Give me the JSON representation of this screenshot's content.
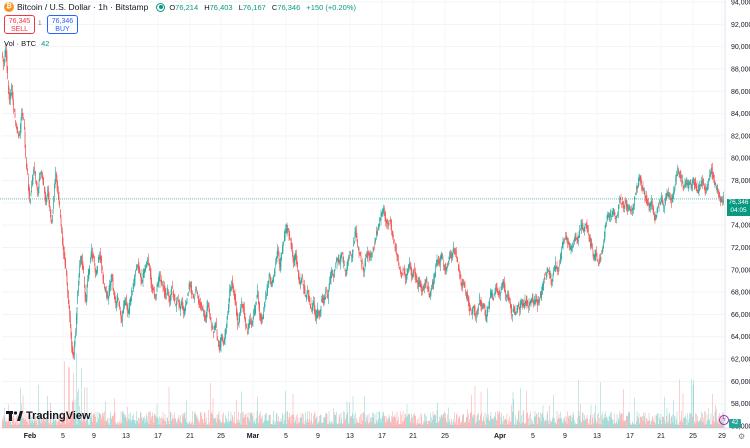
{
  "header": {
    "title": "Bitcoin / U.S. Dollar · 1h · Bitstamp",
    "open_label": "O",
    "open": "76,214",
    "high_label": "H",
    "high": "76,403",
    "low_label": "L",
    "low": "76,167",
    "close_label": "C",
    "close": "76,346",
    "change": "+150 (+0.20%)"
  },
  "trade": {
    "sell_price": "76,345",
    "sell_label": "SELL",
    "spread": "1",
    "buy_price": "76,346",
    "buy_label": "BUY"
  },
  "volume": {
    "label": "Vol · BTC",
    "value": "42"
  },
  "brand": "TradingView",
  "last_price": {
    "price": "76,346",
    "countdown": "04:05",
    "volume_badge": "42"
  },
  "colors": {
    "up": "#26a69a",
    "down": "#ef5350",
    "price_line": "#089981",
    "accent": "#2962ff"
  },
  "icons": {
    "settings": "gear-icon",
    "alert": "lightning-icon"
  },
  "chart_data": {
    "type": "candlestick",
    "y_ticks": [
      "94,000",
      "92,000",
      "90,000",
      "88,000",
      "86,000",
      "84,000",
      "82,000",
      "80,000",
      "78,000",
      "76,000",
      "74,000",
      "72,000",
      "70,000",
      "68,000",
      "66,000",
      "64,000",
      "62,000",
      "60,000",
      "58,000",
      "56,000"
    ],
    "ylim": [
      56000,
      94000
    ],
    "x_ticks": [
      "Feb",
      "5",
      "9",
      "13",
      "17",
      "21",
      "25",
      "Mar",
      "5",
      "9",
      "13",
      "17",
      "21",
      "25",
      "Apr",
      "5",
      "9",
      "13",
      "17",
      "21",
      "25",
      "29"
    ],
    "price_path": [
      [
        0,
        89500
      ],
      [
        2,
        88200
      ],
      [
        4,
        90000
      ],
      [
        6,
        87000
      ],
      [
        8,
        85000
      ],
      [
        10,
        86500
      ],
      [
        12,
        84500
      ],
      [
        14,
        83000
      ],
      [
        16,
        82500
      ],
      [
        18,
        82000
      ],
      [
        20,
        84000
      ],
      [
        22,
        83500
      ],
      [
        24,
        80000
      ],
      [
        26,
        78500
      ],
      [
        28,
        76000
      ],
      [
        30,
        77500
      ],
      [
        32,
        79000
      ],
      [
        34,
        78200
      ],
      [
        36,
        77000
      ],
      [
        38,
        78500
      ],
      [
        40,
        78800
      ],
      [
        42,
        77500
      ],
      [
        44,
        76000
      ],
      [
        46,
        77200
      ],
      [
        48,
        75500
      ],
      [
        50,
        74000
      ],
      [
        52,
        76500
      ],
      [
        54,
        78800
      ],
      [
        56,
        77000
      ],
      [
        58,
        75500
      ],
      [
        60,
        73500
      ],
      [
        62,
        71500
      ],
      [
        64,
        70000
      ],
      [
        66,
        68000
      ],
      [
        68,
        66000
      ],
      [
        70,
        63000
      ],
      [
        72,
        62500
      ],
      [
        74,
        64500
      ],
      [
        76,
        68000
      ],
      [
        78,
        70500
      ],
      [
        80,
        71000
      ],
      [
        82,
        69500
      ],
      [
        84,
        67000
      ],
      [
        86,
        69000
      ],
      [
        88,
        70500
      ],
      [
        90,
        71800
      ],
      [
        92,
        71000
      ],
      [
        94,
        69500
      ],
      [
        96,
        70500
      ],
      [
        98,
        71500
      ],
      [
        100,
        70200
      ],
      [
        102,
        69000
      ],
      [
        104,
        68000
      ],
      [
        106,
        67500
      ],
      [
        108,
        68500
      ],
      [
        110,
        69500
      ],
      [
        112,
        68000
      ],
      [
        114,
        66800
      ],
      [
        116,
        67500
      ],
      [
        118,
        66500
      ],
      [
        120,
        65500
      ],
      [
        122,
        66800
      ],
      [
        124,
        67500
      ],
      [
        126,
        66000
      ],
      [
        128,
        67000
      ],
      [
        130,
        68000
      ],
      [
        132,
        68800
      ],
      [
        134,
        69800
      ],
      [
        136,
        70500
      ],
      [
        138,
        69800
      ],
      [
        140,
        68800
      ],
      [
        142,
        69800
      ],
      [
        144,
        70200
      ],
      [
        146,
        71000
      ],
      [
        148,
        70000
      ],
      [
        150,
        68500
      ],
      [
        152,
        68000
      ],
      [
        154,
        67500
      ],
      [
        156,
        68800
      ],
      [
        158,
        69500
      ],
      [
        160,
        68800
      ],
      [
        162,
        68300
      ],
      [
        164,
        67500
      ],
      [
        166,
        68200
      ],
      [
        168,
        67000
      ],
      [
        170,
        68500
      ],
      [
        172,
        67500
      ],
      [
        174,
        66800
      ],
      [
        176,
        67500
      ],
      [
        178,
        66500
      ],
      [
        180,
        67200
      ],
      [
        182,
        66000
      ],
      [
        184,
        66800
      ],
      [
        186,
        67800
      ],
      [
        188,
        68800
      ],
      [
        190,
        68000
      ],
      [
        192,
        67300
      ],
      [
        194,
        68300
      ],
      [
        196,
        67500
      ],
      [
        198,
        67000
      ],
      [
        200,
        66500
      ],
      [
        202,
        66000
      ],
      [
        204,
        65500
      ],
      [
        206,
        67000
      ],
      [
        208,
        66000
      ],
      [
        210,
        65000
      ],
      [
        212,
        64500
      ],
      [
        214,
        65200
      ],
      [
        216,
        63500
      ],
      [
        218,
        63000
      ],
      [
        220,
        64000
      ],
      [
        222,
        63300
      ],
      [
        224,
        64500
      ],
      [
        226,
        66000
      ],
      [
        228,
        68000
      ],
      [
        230,
        69000
      ],
      [
        232,
        68000
      ],
      [
        234,
        67000
      ],
      [
        236,
        65000
      ],
      [
        238,
        66000
      ],
      [
        240,
        67000
      ],
      [
        242,
        66500
      ],
      [
        244,
        65000
      ],
      [
        246,
        64500
      ],
      [
        248,
        65500
      ],
      [
        250,
        65000
      ],
      [
        252,
        66000
      ],
      [
        254,
        67000
      ],
      [
        256,
        68000
      ],
      [
        258,
        66000
      ],
      [
        260,
        65500
      ],
      [
        262,
        66500
      ],
      [
        264,
        67500
      ],
      [
        266,
        68500
      ],
      [
        268,
        69500
      ],
      [
        270,
        68500
      ],
      [
        272,
        69500
      ],
      [
        274,
        70500
      ],
      [
        276,
        72000
      ],
      [
        278,
        70000
      ],
      [
        280,
        71500
      ],
      [
        282,
        72500
      ],
      [
        284,
        73500
      ],
      [
        286,
        73500
      ],
      [
        288,
        73000
      ],
      [
        290,
        72000
      ],
      [
        292,
        70500
      ],
      [
        294,
        71500
      ],
      [
        296,
        70000
      ],
      [
        298,
        68500
      ],
      [
        300,
        69500
      ],
      [
        302,
        68500
      ],
      [
        304,
        67500
      ],
      [
        306,
        68000
      ],
      [
        308,
        67000
      ],
      [
        310,
        66500
      ],
      [
        312,
        67000
      ],
      [
        314,
        65500
      ],
      [
        316,
        66500
      ],
      [
        318,
        66000
      ],
      [
        320,
        67500
      ],
      [
        322,
        67000
      ],
      [
        324,
        68000
      ],
      [
        326,
        67500
      ],
      [
        328,
        69000
      ],
      [
        330,
        70000
      ],
      [
        332,
        69500
      ],
      [
        334,
        70500
      ],
      [
        336,
        71000
      ],
      [
        338,
        70500
      ],
      [
        340,
        71500
      ],
      [
        342,
        70500
      ],
      [
        344,
        69500
      ],
      [
        346,
        70500
      ],
      [
        348,
        71500
      ],
      [
        350,
        71000
      ],
      [
        352,
        72500
      ],
      [
        354,
        73500
      ],
      [
        356,
        72000
      ],
      [
        358,
        71500
      ],
      [
        360,
        70500
      ],
      [
        362,
        70000
      ],
      [
        364,
        71000
      ],
      [
        366,
        71500
      ],
      [
        368,
        71000
      ],
      [
        370,
        71500
      ],
      [
        372,
        72000
      ],
      [
        374,
        73000
      ],
      [
        376,
        73500
      ],
      [
        378,
        74500
      ],
      [
        380,
        75000
      ],
      [
        382,
        75300
      ],
      [
        384,
        74500
      ],
      [
        386,
        74000
      ],
      [
        388,
        74500
      ],
      [
        390,
        73500
      ],
      [
        392,
        72500
      ],
      [
        394,
        72000
      ],
      [
        396,
        71000
      ],
      [
        398,
        70000
      ],
      [
        400,
        69500
      ],
      [
        402,
        70000
      ],
      [
        404,
        69000
      ],
      [
        406,
        70000
      ],
      [
        408,
        70500
      ],
      [
        410,
        69500
      ],
      [
        412,
        70000
      ],
      [
        414,
        69500
      ],
      [
        416,
        68500
      ],
      [
        418,
        69000
      ],
      [
        420,
        68000
      ],
      [
        422,
        68500
      ],
      [
        424,
        69000
      ],
      [
        426,
        68500
      ],
      [
        428,
        67500
      ],
      [
        430,
        68500
      ],
      [
        432,
        69000
      ],
      [
        434,
        70500
      ],
      [
        436,
        71000
      ],
      [
        438,
        70500
      ],
      [
        440,
        71500
      ],
      [
        442,
        70500
      ],
      [
        444,
        70000
      ],
      [
        446,
        70500
      ],
      [
        448,
        71500
      ],
      [
        450,
        71000
      ],
      [
        452,
        72000
      ],
      [
        454,
        71500
      ],
      [
        456,
        70500
      ],
      [
        458,
        69500
      ],
      [
        460,
        68500
      ],
      [
        462,
        69000
      ],
      [
        464,
        68000
      ],
      [
        466,
        67500
      ],
      [
        468,
        66500
      ],
      [
        470,
        66000
      ],
      [
        472,
        66800
      ],
      [
        474,
        65800
      ],
      [
        476,
        66500
      ],
      [
        478,
        67500
      ],
      [
        480,
        66500
      ],
      [
        482,
        67000
      ],
      [
        484,
        65500
      ],
      [
        486,
        66500
      ],
      [
        488,
        67500
      ],
      [
        490,
        68000
      ],
      [
        492,
        67500
      ],
      [
        494,
        68500
      ],
      [
        496,
        68000
      ],
      [
        498,
        67500
      ],
      [
        500,
        68500
      ],
      [
        502,
        69000
      ],
      [
        504,
        67500
      ],
      [
        506,
        68000
      ],
      [
        508,
        67000
      ],
      [
        510,
        66000
      ],
      [
        512,
        66500
      ],
      [
        514,
        66000
      ],
      [
        516,
        67000
      ],
      [
        518,
        66500
      ],
      [
        520,
        67000
      ],
      [
        522,
        66800
      ],
      [
        524,
        67300
      ],
      [
        526,
        66800
      ],
      [
        528,
        67000
      ],
      [
        530,
        67500
      ],
      [
        532,
        67000
      ],
      [
        534,
        67500
      ],
      [
        536,
        66800
      ],
      [
        538,
        67500
      ],
      [
        540,
        68000
      ],
      [
        542,
        69000
      ],
      [
        544,
        69500
      ],
      [
        546,
        70000
      ],
      [
        548,
        69500
      ],
      [
        550,
        69000
      ],
      [
        552,
        69800
      ],
      [
        554,
        70500
      ],
      [
        556,
        70000
      ],
      [
        558,
        70500
      ],
      [
        560,
        72000
      ],
      [
        562,
        72500
      ],
      [
        564,
        73000
      ],
      [
        566,
        72500
      ],
      [
        568,
        72000
      ],
      [
        570,
        71800
      ],
      [
        572,
        72500
      ],
      [
        574,
        73000
      ],
      [
        576,
        72500
      ],
      [
        578,
        73500
      ],
      [
        580,
        74000
      ],
      [
        582,
        73500
      ],
      [
        584,
        74000
      ],
      [
        586,
        73500
      ],
      [
        588,
        72500
      ],
      [
        590,
        72000
      ],
      [
        592,
        71000
      ],
      [
        594,
        71500
      ],
      [
        596,
        70500
      ],
      [
        598,
        71000
      ],
      [
        600,
        71500
      ],
      [
        602,
        72500
      ],
      [
        604,
        74000
      ],
      [
        606,
        75000
      ],
      [
        608,
        74500
      ],
      [
        610,
        75000
      ],
      [
        612,
        75500
      ],
      [
        614,
        74500
      ],
      [
        616,
        75000
      ],
      [
        618,
        76500
      ],
      [
        620,
        76000
      ],
      [
        622,
        75500
      ],
      [
        624,
        76000
      ],
      [
        626,
        75500
      ],
      [
        628,
        75500
      ],
      [
        630,
        75000
      ],
      [
        632,
        76000
      ],
      [
        634,
        77000
      ],
      [
        636,
        77500
      ],
      [
        638,
        78500
      ],
      [
        640,
        77500
      ],
      [
        642,
        77000
      ],
      [
        644,
        76500
      ],
      [
        646,
        76000
      ],
      [
        648,
        75500
      ],
      [
        650,
        76000
      ],
      [
        652,
        75000
      ],
      [
        654,
        74500
      ],
      [
        656,
        75500
      ],
      [
        658,
        76000
      ],
      [
        660,
        76500
      ],
      [
        662,
        75500
      ],
      [
        664,
        76500
      ],
      [
        666,
        77000
      ],
      [
        668,
        76500
      ],
      [
        670,
        76000
      ],
      [
        672,
        77000
      ],
      [
        674,
        78000
      ],
      [
        676,
        79000
      ],
      [
        678,
        78500
      ],
      [
        680,
        78000
      ],
      [
        682,
        77500
      ],
      [
        684,
        78000
      ],
      [
        686,
        77500
      ],
      [
        688,
        78000
      ],
      [
        690,
        77500
      ],
      [
        692,
        78000
      ],
      [
        694,
        77500
      ],
      [
        696,
        77000
      ],
      [
        698,
        77500
      ],
      [
        700,
        78000
      ],
      [
        702,
        77500
      ],
      [
        704,
        77000
      ],
      [
        706,
        77500
      ],
      [
        708,
        78500
      ],
      [
        710,
        79000
      ],
      [
        712,
        78000
      ],
      [
        714,
        77500
      ],
      [
        716,
        77000
      ],
      [
        718,
        76500
      ],
      [
        720,
        76200
      ],
      [
        722,
        76346
      ]
    ]
  }
}
